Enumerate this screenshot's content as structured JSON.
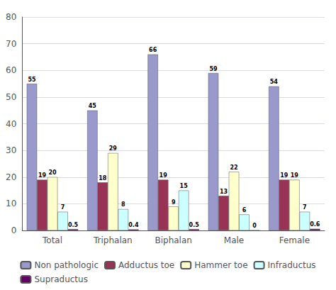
{
  "chart_data": {
    "type": "bar",
    "categories": [
      "Total",
      "Triphalan",
      "Biphalan",
      "Male",
      "Female"
    ],
    "series": [
      {
        "name": "Non pathologic",
        "color": "#9999CC",
        "values": [
          55,
          45,
          66,
          59,
          54
        ]
      },
      {
        "name": "Adductus toe",
        "color": "#993355",
        "values": [
          19,
          18,
          19,
          13,
          19
        ]
      },
      {
        "name": "Hammer toe",
        "color": "#FFFFCC",
        "values": [
          20,
          29,
          9,
          22,
          19
        ]
      },
      {
        "name": "Infraductus",
        "color": "#CCFFFF",
        "values": [
          7,
          8,
          15,
          6,
          7
        ]
      },
      {
        "name": "Supraductus",
        "color": "#660066",
        "values": [
          0.5,
          0.4,
          0.5,
          0,
          0.6
        ]
      }
    ],
    "ylim": [
      0,
      80
    ],
    "yticks": [
      0,
      10,
      20,
      30,
      40,
      50,
      60,
      70,
      80
    ],
    "grid": true,
    "legend": "bottom",
    "data_labels": true
  }
}
